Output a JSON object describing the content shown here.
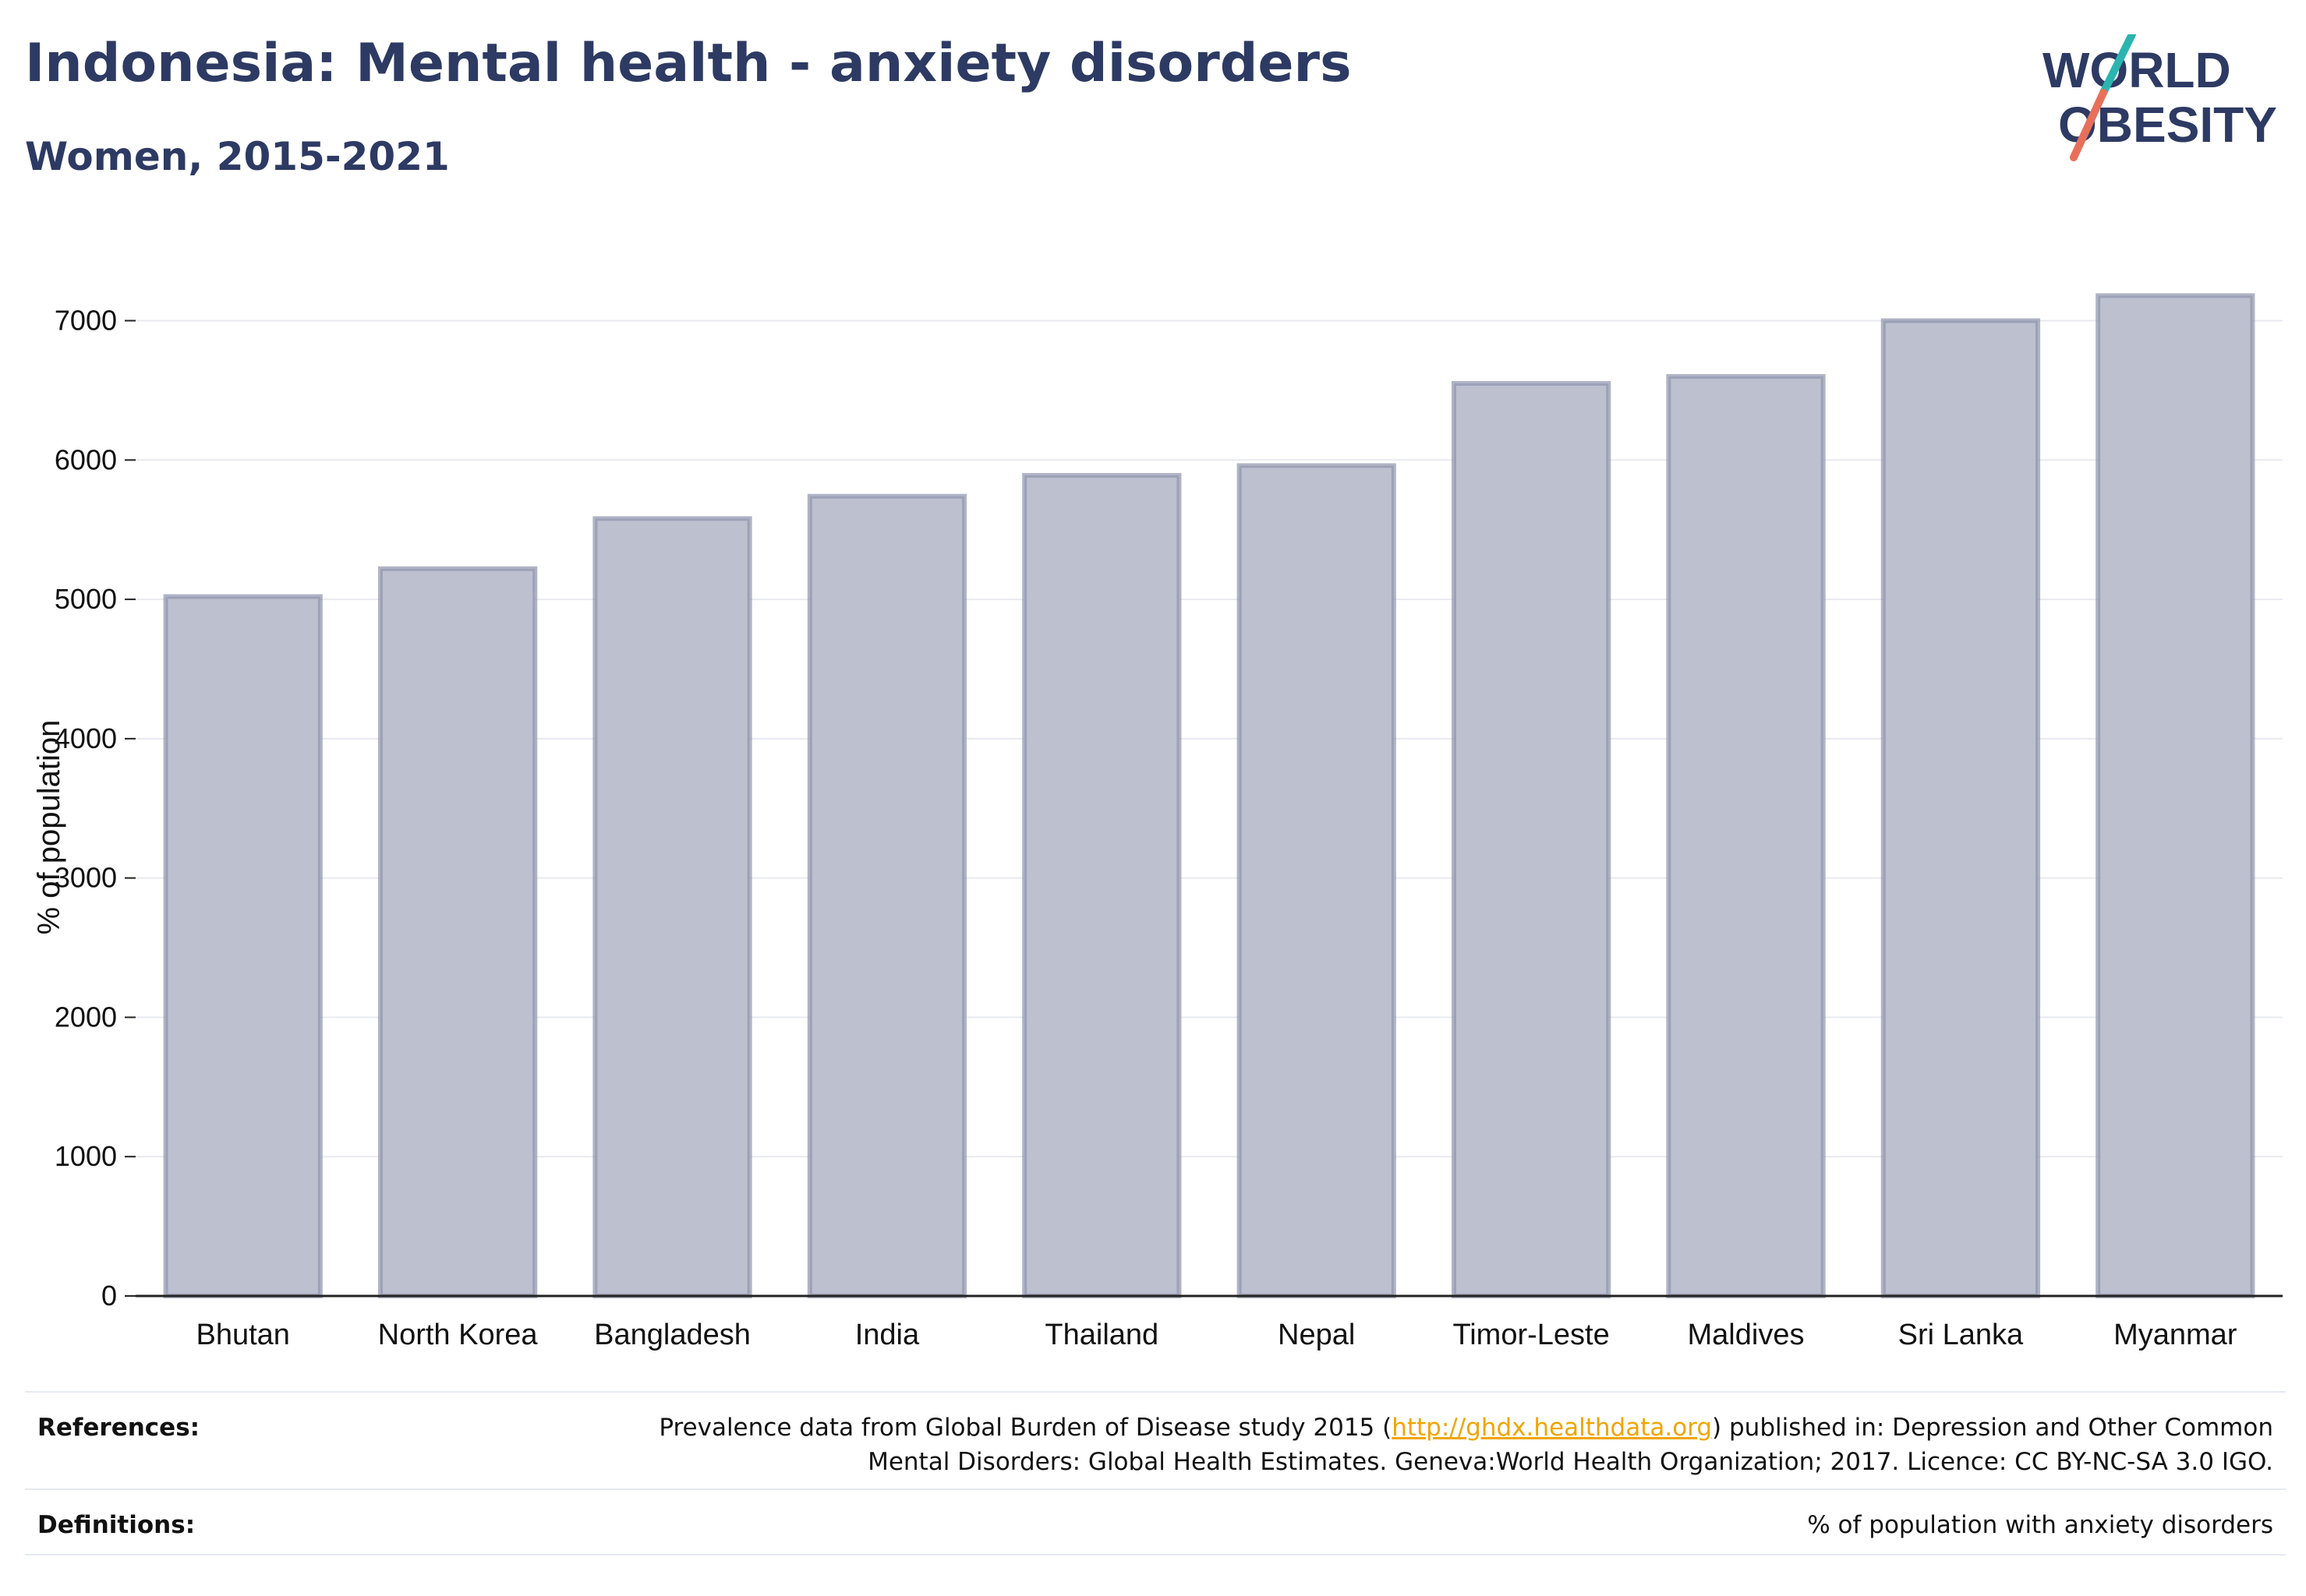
{
  "header": {
    "title": "Indonesia: Mental health - anxiety disorders",
    "subtitle": "Women, 2015-2021"
  },
  "logo": {
    "line1": "WORLD",
    "line2": "OBESITY",
    "colors": {
      "text": "#2d3a63",
      "slash_top": "#2bb5b0",
      "slash_bottom": "#e8705a"
    }
  },
  "chart_data": {
    "type": "bar",
    "categories": [
      "Bhutan",
      "North Korea",
      "Bangladesh",
      "India",
      "Thailand",
      "Nepal",
      "Timor-Leste",
      "Maldives",
      "Sri Lanka",
      "Myanmar"
    ],
    "values": [
      5020,
      5220,
      5580,
      5740,
      5890,
      5960,
      6550,
      6600,
      7000,
      7180
    ],
    "ylabel": "% of population",
    "xlabel": "",
    "ylim": [
      0,
      7400
    ],
    "yticks": [
      0,
      1000,
      2000,
      3000,
      4000,
      5000,
      6000,
      7000
    ],
    "grid": true,
    "colors": {
      "bar_fill": "#bcc0cf",
      "bar_stroke": "#8e94ad",
      "grid": "#e8eaf0",
      "axis": "#222222"
    }
  },
  "footer": {
    "references_label": "References:",
    "references_pre": "Prevalence data from Global Burden of Disease study 2015 (",
    "references_link": "http://ghdx.healthdata.org",
    "references_post": ") published in: Depression and Other Common",
    "references_line2": "Mental Disorders: Global Health Estimates. Geneva:World Health Organization; 2017. Licence: CC BY-NC-SA 3.0 IGO.",
    "definitions_label": "Definitions:",
    "definitions_text": "% of population with anxiety disorders"
  }
}
